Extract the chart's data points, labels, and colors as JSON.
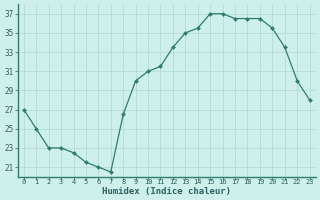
{
  "x": [
    0,
    1,
    2,
    3,
    4,
    5,
    6,
    7,
    8,
    9,
    10,
    11,
    12,
    13,
    14,
    15,
    16,
    17,
    18,
    19,
    20,
    21,
    22,
    23
  ],
  "y": [
    27,
    25,
    23,
    23,
    22.5,
    21.5,
    21,
    20.5,
    26.5,
    30,
    31,
    31.5,
    33.5,
    35,
    35.5,
    37,
    37,
    36.5,
    36.5,
    36.5,
    35.5,
    33.5,
    30,
    28
  ],
  "xlabel": "Humidex (Indice chaleur)",
  "line_color": "#2e7d6e",
  "marker_color": "#2e7d6e",
  "bg_color": "#cef0ea",
  "grid_color": "#b0d8d2",
  "ylim": [
    20.0,
    38.0
  ],
  "yticks": [
    21,
    23,
    25,
    27,
    29,
    31,
    33,
    35,
    37
  ],
  "xticks": [
    0,
    1,
    2,
    3,
    4,
    5,
    6,
    7,
    8,
    9,
    10,
    11,
    12,
    13,
    14,
    15,
    16,
    17,
    18,
    19,
    20,
    21,
    22,
    23
  ],
  "xlim": [
    -0.5,
    23.5
  ]
}
